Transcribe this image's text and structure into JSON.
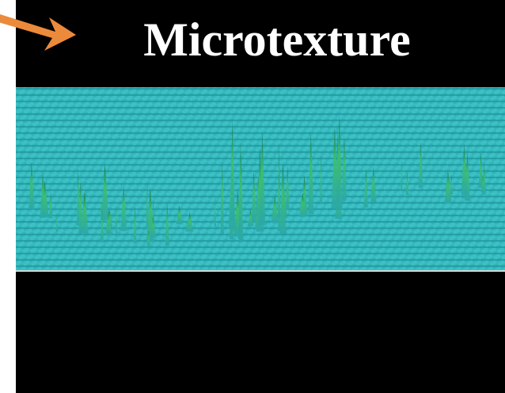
{
  "title": "Microtexture"
}
